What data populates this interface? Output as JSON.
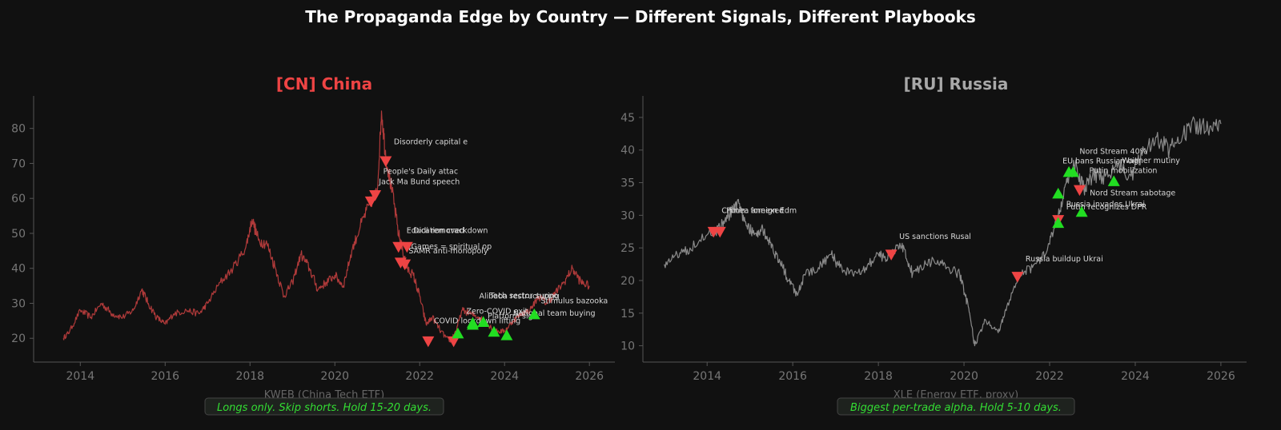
{
  "figure": {
    "title": "The Propaganda Edge by Country — Different Signals, Different Playbooks",
    "title_color": "#ffffff",
    "background": "#111111"
  },
  "chart_data": [
    {
      "type": "line",
      "title": "[CN]  China",
      "title_color": "#ee4444",
      "xlabel": "KWEB (China Tech ETF)",
      "ylabel": "",
      "line_color": "#b03a3a",
      "xlim": [
        2012.9,
        2026.6
      ],
      "ylim": [
        13.2,
        89.3
      ],
      "xticks": [
        2014,
        2016,
        2018,
        2020,
        2022,
        2024,
        2026
      ],
      "yticks": [
        20,
        30,
        40,
        50,
        60,
        70,
        80
      ],
      "grid": false,
      "footnote": "Longs only. Skip shorts. Hold 15-20 days.",
      "series": [
        {
          "x": [
            2013.6,
            2013.75,
            2014.0,
            2014.25,
            2014.5,
            2014.75,
            2015.0,
            2015.25,
            2015.45,
            2015.6,
            2015.8,
            2016.0,
            2016.2,
            2016.5,
            2016.8,
            2017.0,
            2017.3,
            2017.6,
            2017.9,
            2018.05,
            2018.2,
            2018.4,
            2018.6,
            2018.8,
            2019.0,
            2019.2,
            2019.4,
            2019.6,
            2019.8,
            2020.0,
            2020.2,
            2020.4,
            2020.6,
            2020.8,
            2021.0,
            2021.1,
            2021.2,
            2021.35,
            2021.5,
            2021.6,
            2021.7,
            2021.85,
            2022.0,
            2022.15,
            2022.3,
            2022.5,
            2022.7,
            2022.85,
            2023.0,
            2023.2,
            2023.4,
            2023.6,
            2023.8,
            2024.0,
            2024.2,
            2024.4,
            2024.6,
            2024.8,
            2025.0,
            2025.2,
            2025.4,
            2025.6,
            2025.8,
            2026.0
          ],
          "y": [
            20,
            22,
            28,
            26,
            30,
            27,
            26,
            28,
            34,
            30,
            26,
            24,
            27,
            28,
            27,
            30,
            36,
            40,
            46,
            54,
            48,
            47,
            40,
            32,
            36,
            44,
            40,
            34,
            36,
            38,
            35,
            45,
            52,
            58,
            62,
            85,
            72,
            62,
            50,
            45,
            40,
            38,
            32,
            24,
            26,
            22,
            19,
            22,
            28,
            27,
            26,
            24,
            22,
            22,
            25,
            27,
            28,
            32,
            30,
            33,
            36,
            40,
            36,
            35
          ]
        }
      ],
      "annotations": [
        {
          "x": 2020.85,
          "y": 59,
          "kind": "sell",
          "label": "Jack Ma Bund speech",
          "dx": 10,
          "dy": -22
        },
        {
          "x": 2020.95,
          "y": 60.8,
          "kind": "sell",
          "label": "People's Daily attac",
          "dx": 10,
          "dy": -27
        },
        {
          "x": 2021.2,
          "y": 70.5,
          "kind": "sell",
          "label": "Disorderly capital e",
          "dx": 10,
          "dy": -22
        },
        {
          "x": 2021.5,
          "y": 46,
          "kind": "sell",
          "label": "Education crackdown",
          "dx": 10,
          "dy": -18
        },
        {
          "x": 2021.55,
          "y": 41.5,
          "kind": "sell",
          "label": "SAMR anti-monopoly",
          "dx": 10,
          "dy": -12
        },
        {
          "x": 2021.65,
          "y": 41,
          "kind": "sell",
          "label": "Games = spiritual op",
          "dx": 8,
          "dy": -20
        },
        {
          "x": 2021.7,
          "y": 46,
          "kind": "sell",
          "label": "Didi removed",
          "dx": 8,
          "dy": -18
        },
        {
          "x": 2022.2,
          "y": 19,
          "kind": "sell",
          "label": "",
          "dx": 0,
          "dy": 0
        },
        {
          "x": 2022.8,
          "y": 19,
          "kind": "sell",
          "label": "",
          "dx": 0,
          "dy": 0
        },
        {
          "x": 2022.9,
          "y": 21.5,
          "kind": "buy",
          "label": "COVID lockdown lifting",
          "dx": -30,
          "dy": -12
        },
        {
          "x": 2023.25,
          "y": 24,
          "kind": "buy",
          "label": "Zero-COVID exit",
          "dx": -8,
          "dy": -13
        },
        {
          "x": 2023.25,
          "y": 24.5,
          "kind": "buy",
          "label": "Alibaba restructuring",
          "dx": 8,
          "dy": -30
        },
        {
          "x": 2023.5,
          "y": 24.8,
          "kind": "buy",
          "label": "Tech sector suppo",
          "dx": 8,
          "dy": -29
        },
        {
          "x": 2023.75,
          "y": 22,
          "kind": "buy",
          "label": "Platform sig",
          "dx": -8,
          "dy": -16
        },
        {
          "x": 2024.05,
          "y": 21,
          "kind": "buy",
          "label": "National team buying",
          "dx": 8,
          "dy": -24
        },
        {
          "x": 2024.7,
          "y": 27,
          "kind": "buy",
          "label": "Stimulus bazooka",
          "dx": 8,
          "dy": -13
        }
      ]
    },
    {
      "type": "line",
      "title": "[RU]  Russia",
      "title_color": "#a8a8a8",
      "xlabel": "XLE (Energy ETF, proxy)",
      "ylabel": "",
      "line_color": "#8a8a8a",
      "xlim": [
        2012.5,
        2026.6
      ],
      "ylim": [
        7.5,
        48.3
      ],
      "xticks": [
        2014,
        2016,
        2018,
        2020,
        2022,
        2024,
        2026
      ],
      "yticks": [
        10,
        15,
        20,
        25,
        30,
        35,
        40,
        45
      ],
      "grid": false,
      "footnote": "Biggest per-trade alpha. Hold 5-10 days.",
      "series": [
        {
          "x": [
            2013.0,
            2013.3,
            2013.6,
            2014.0,
            2014.3,
            2014.5,
            2014.7,
            2014.9,
            2015.1,
            2015.3,
            2015.5,
            2015.7,
            2015.9,
            2016.1,
            2016.3,
            2016.6,
            2016.9,
            2017.1,
            2017.4,
            2017.7,
            2018.0,
            2018.2,
            2018.4,
            2018.6,
            2018.8,
            2019.0,
            2019.3,
            2019.6,
            2019.9,
            2020.1,
            2020.25,
            2020.5,
            2020.8,
            2021.0,
            2021.3,
            2021.6,
            2021.9,
            2022.1,
            2022.3,
            2022.45,
            2022.6,
            2022.8,
            2023.0,
            2023.3,
            2023.6,
            2023.9,
            2024.2,
            2024.5,
            2024.8,
            2025.1,
            2025.4,
            2025.7,
            2026.0
          ],
          "y": [
            22.5,
            24,
            25,
            27,
            28,
            30,
            32,
            29,
            27,
            28,
            25,
            23,
            20,
            18,
            21,
            22,
            24,
            22,
            21,
            22,
            24,
            23,
            25,
            25,
            21,
            22,
            23,
            22,
            21,
            16,
            10,
            14,
            12,
            16,
            21,
            22,
            24,
            28,
            32,
            36,
            38,
            34,
            36,
            36,
            38,
            36,
            40,
            42,
            40,
            42,
            44,
            43,
            44
          ]
        }
      ],
      "annotations": [
        {
          "x": 2014.15,
          "y": 27.4,
          "kind": "sell",
          "label": "Crimea annexed",
          "dx": 10,
          "dy": -24
        },
        {
          "x": 2014.3,
          "y": 27.4,
          "kind": "sell",
          "label": "Putin: foreign Edm",
          "dx": 8,
          "dy": -24
        },
        {
          "x": 2018.3,
          "y": 23.9,
          "kind": "sell",
          "label": "US sanctions Rusal",
          "dx": 10,
          "dy": -20
        },
        {
          "x": 2021.25,
          "y": 20.5,
          "kind": "sell",
          "label": "Russia buildup Ukrai",
          "dx": 10,
          "dy": -20
        },
        {
          "x": 2022.2,
          "y": 29.2,
          "kind": "sell",
          "label": "Putin recognizes DPR",
          "dx": 10,
          "dy": -14
        },
        {
          "x": 2022.2,
          "y": 28.9,
          "kind": "buy",
          "label": "Russia invades Ukrai",
          "dx": 10,
          "dy": -20
        },
        {
          "x": 2022.2,
          "y": 33.4,
          "kind": "buy",
          "label": "",
          "dx": 0,
          "dy": 0
        },
        {
          "x": 2022.45,
          "y": 36.7,
          "kind": "buy",
          "label": "EU bans Russian oil",
          "dx": -8,
          "dy": -10
        },
        {
          "x": 2022.55,
          "y": 36.7,
          "kind": "buy",
          "label": "Nord Stream 40%",
          "dx": 8,
          "dy": -22
        },
        {
          "x": 2022.7,
          "y": 33.8,
          "kind": "sell",
          "label": "Putin mobilization",
          "dx": 12,
          "dy": -22
        },
        {
          "x": 2022.75,
          "y": 30.6,
          "kind": "buy",
          "label": "Nord Stream sabotage",
          "dx": 10,
          "dy": -20
        },
        {
          "x": 2023.5,
          "y": 35.3,
          "kind": "buy",
          "label": "Wagner mutiny",
          "dx": 10,
          "dy": -22
        }
      ]
    }
  ]
}
